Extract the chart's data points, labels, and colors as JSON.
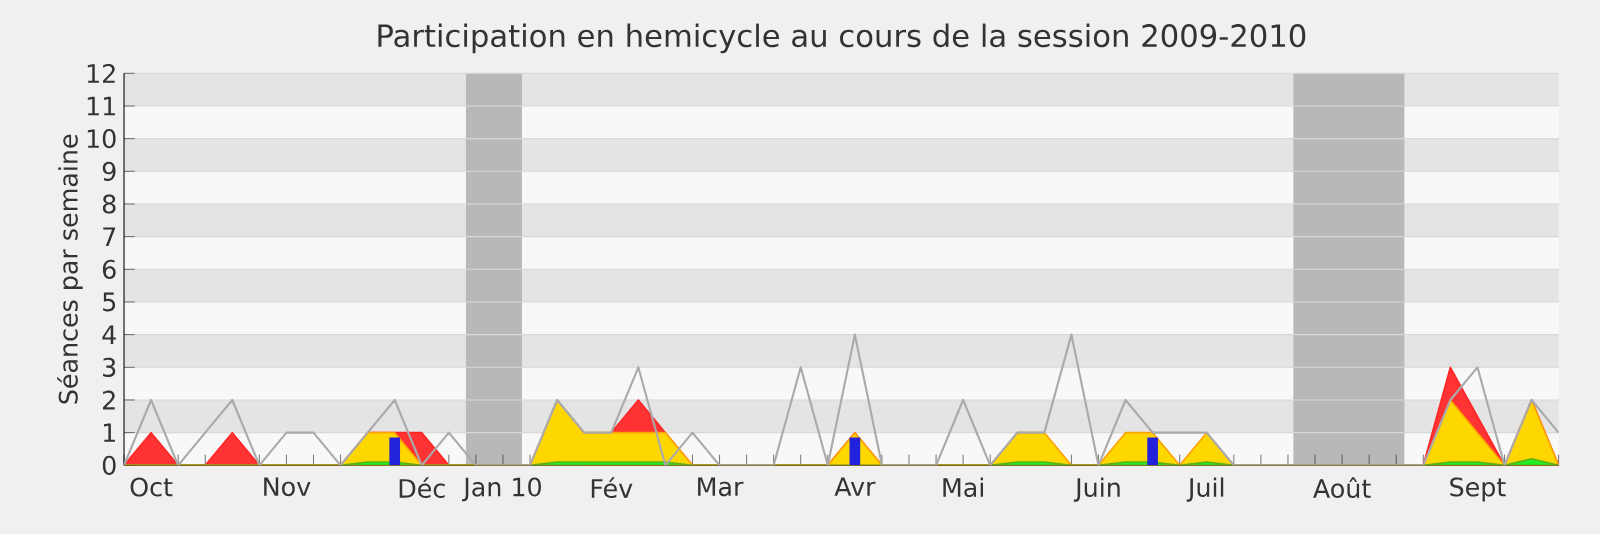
{
  "chart_data": {
    "type": "area",
    "title": "Participation en hemicycle au cours de la session 2009-2010",
    "ylabel": "Séances par semaine",
    "categories": [
      null,
      "Oct",
      null,
      null,
      null,
      null,
      "Nov",
      null,
      null,
      null,
      null,
      "Déc",
      null,
      null,
      "Jan 10",
      null,
      null,
      null,
      "Fév",
      null,
      null,
      null,
      "Mar",
      null,
      null,
      null,
      null,
      "Avr",
      null,
      null,
      null,
      "Mai",
      null,
      null,
      null,
      null,
      "Juin",
      null,
      null,
      null,
      "Juil",
      null,
      null,
      null,
      null,
      "Août",
      null,
      null,
      null,
      null,
      "Sept",
      null,
      null,
      null
    ],
    "series": [
      {
        "type": "line",
        "color": "#aaaaaa",
        "values": [
          0,
          2,
          0,
          1,
          2,
          0,
          1,
          1,
          0,
          1,
          2,
          0,
          1,
          0,
          0,
          0,
          2,
          1,
          1,
          3,
          0,
          1,
          0,
          0,
          0,
          3,
          0,
          4,
          0,
          0,
          0,
          2,
          0,
          1,
          1,
          4,
          0,
          2,
          1,
          1,
          1,
          0,
          0,
          0,
          0,
          0,
          0,
          0,
          0,
          2,
          3,
          0,
          2,
          1
        ]
      },
      {
        "color": "#ff3333",
        "values": [
          0,
          1,
          0,
          0,
          1,
          0,
          0,
          0,
          0,
          1,
          1,
          1,
          0,
          0,
          0,
          0,
          0,
          0,
          1,
          2,
          1,
          0,
          0,
          0,
          0,
          0,
          0,
          1,
          0,
          0,
          0,
          0,
          0,
          0,
          0,
          0,
          0,
          0,
          0,
          0,
          0,
          0,
          0,
          0,
          0,
          0,
          0,
          0,
          0,
          3,
          1.5,
          0,
          2,
          0
        ]
      },
      {
        "color": "#ffd700",
        "values": [
          0,
          0,
          0,
          0,
          0,
          0,
          0,
          0,
          0,
          1,
          1,
          0,
          0,
          0,
          0,
          0,
          2,
          1,
          1,
          1,
          1,
          0,
          0,
          0,
          0,
          0,
          0,
          1,
          0,
          0,
          0,
          0,
          0,
          1,
          1,
          0,
          0,
          1,
          1,
          0,
          1,
          0,
          0,
          0,
          0,
          0,
          0,
          0,
          0,
          2,
          1,
          0,
          2,
          0
        ]
      },
      {
        "color": "#22ee22",
        "values": [
          0,
          0,
          0,
          0,
          0,
          0,
          0,
          0,
          0,
          0.1,
          0.1,
          0,
          0,
          0,
          0,
          0,
          0.1,
          0.1,
          0.1,
          0.1,
          0.1,
          0,
          0,
          0,
          0,
          0,
          0,
          0,
          0,
          0,
          0,
          0,
          0,
          0.1,
          0.1,
          0,
          0,
          0.1,
          0.1,
          0,
          0.1,
          0,
          0,
          0,
          0,
          0,
          0,
          0,
          0,
          0.1,
          0.1,
          0,
          0.2,
          0
        ]
      },
      {
        "type": "bar",
        "color": "#2222dd",
        "values": [
          null,
          null,
          null,
          null,
          null,
          null,
          null,
          null,
          null,
          null,
          0.85,
          null,
          null,
          null,
          null,
          null,
          null,
          null,
          null,
          null,
          null,
          null,
          null,
          null,
          null,
          null,
          null,
          0.85,
          null,
          null,
          null,
          null,
          null,
          null,
          null,
          null,
          null,
          null,
          0.85,
          null,
          null,
          null,
          null,
          null,
          null,
          null,
          null,
          null,
          null,
          null,
          null,
          null,
          null,
          null
        ]
      }
    ],
    "ylim": [
      0,
      12
    ],
    "yticks": [
      0,
      1,
      2,
      3,
      4,
      5,
      6,
      7,
      8,
      9,
      10,
      11,
      12
    ],
    "grid": "y"
  }
}
